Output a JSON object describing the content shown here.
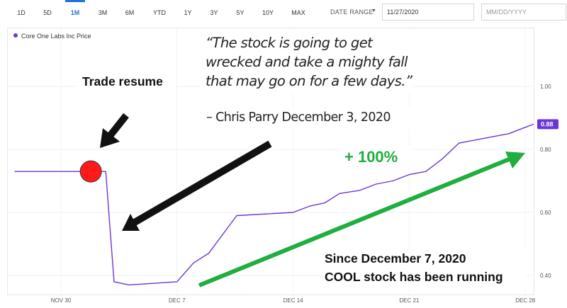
{
  "toolbar": {
    "ranges": [
      "1D",
      "5D",
      "1M",
      "3M",
      "6M",
      "YTD",
      "1Y",
      "3Y",
      "5Y",
      "10Y",
      "MAX"
    ],
    "active_range": "1M",
    "date_range_label": "DATE RANGE",
    "start_date_value": "11/27/2020",
    "end_date_placeholder": "MM/DD/YYYY"
  },
  "legend": {
    "label": "Core One Labs Inc Price"
  },
  "annotations": {
    "quote_lines": [
      "“The stock is going to get",
      "wrecked and take a mighty fall",
      "that may go on for a few days.”"
    ],
    "attribution": "– Chris Parry December 3, 2020",
    "trade_resume": "Trade resume",
    "gain": "+ 100%",
    "since_lines": [
      "Since December 7, 2020",
      "COOL stock has been running"
    ]
  },
  "colors": {
    "series": "#6c35d6",
    "price_tag": "#6c35d6",
    "gain_text": "#1fae3f",
    "up_arrow": "#1fae3f",
    "black_arrows": "#111111",
    "marker": "#ff1a1a",
    "active_tab": "#1f73d6"
  },
  "icons": {
    "dropdown": "caret-down-icon",
    "marker": "red-dot-marker",
    "arrows": [
      "black-arrow-down-right",
      "black-arrow-down-left",
      "green-arrow-up-right"
    ]
  },
  "chart_data": {
    "type": "line",
    "x_tick_labels": [
      "NOV 30",
      "DEC 7",
      "DEC 14",
      "DEC 21",
      "DEC 28"
    ],
    "x_tick_days": [
      0,
      7,
      14,
      21,
      28
    ],
    "y_tick_labels": [
      "1.00",
      "0.80",
      "0.60",
      "0.40"
    ],
    "y_ticks": [
      1.0,
      0.8,
      0.6,
      0.4
    ],
    "ylim": [
      0.35,
      1.2
    ],
    "last_price_label": "0.88",
    "series": [
      {
        "name": "Core One Labs Inc Price",
        "x": [
          -2.8,
          1.8,
          2.7,
          3.2,
          4.1,
          7.0,
          8.0,
          8.9,
          10.6,
          14.0,
          15.0,
          15.9,
          16.8,
          18.0,
          19.0,
          20.0,
          21.0,
          22.0,
          23.0,
          24.0,
          25.0,
          26.0,
          27.0,
          28.0,
          28.5
        ],
        "y": [
          0.73,
          0.73,
          0.73,
          0.38,
          0.37,
          0.38,
          0.44,
          0.47,
          0.59,
          0.6,
          0.62,
          0.63,
          0.66,
          0.67,
          0.69,
          0.7,
          0.72,
          0.73,
          0.77,
          0.82,
          0.83,
          0.84,
          0.85,
          0.87,
          0.88
        ]
      }
    ],
    "marker_point": {
      "x": 1.8,
      "y": 0.73
    }
  }
}
